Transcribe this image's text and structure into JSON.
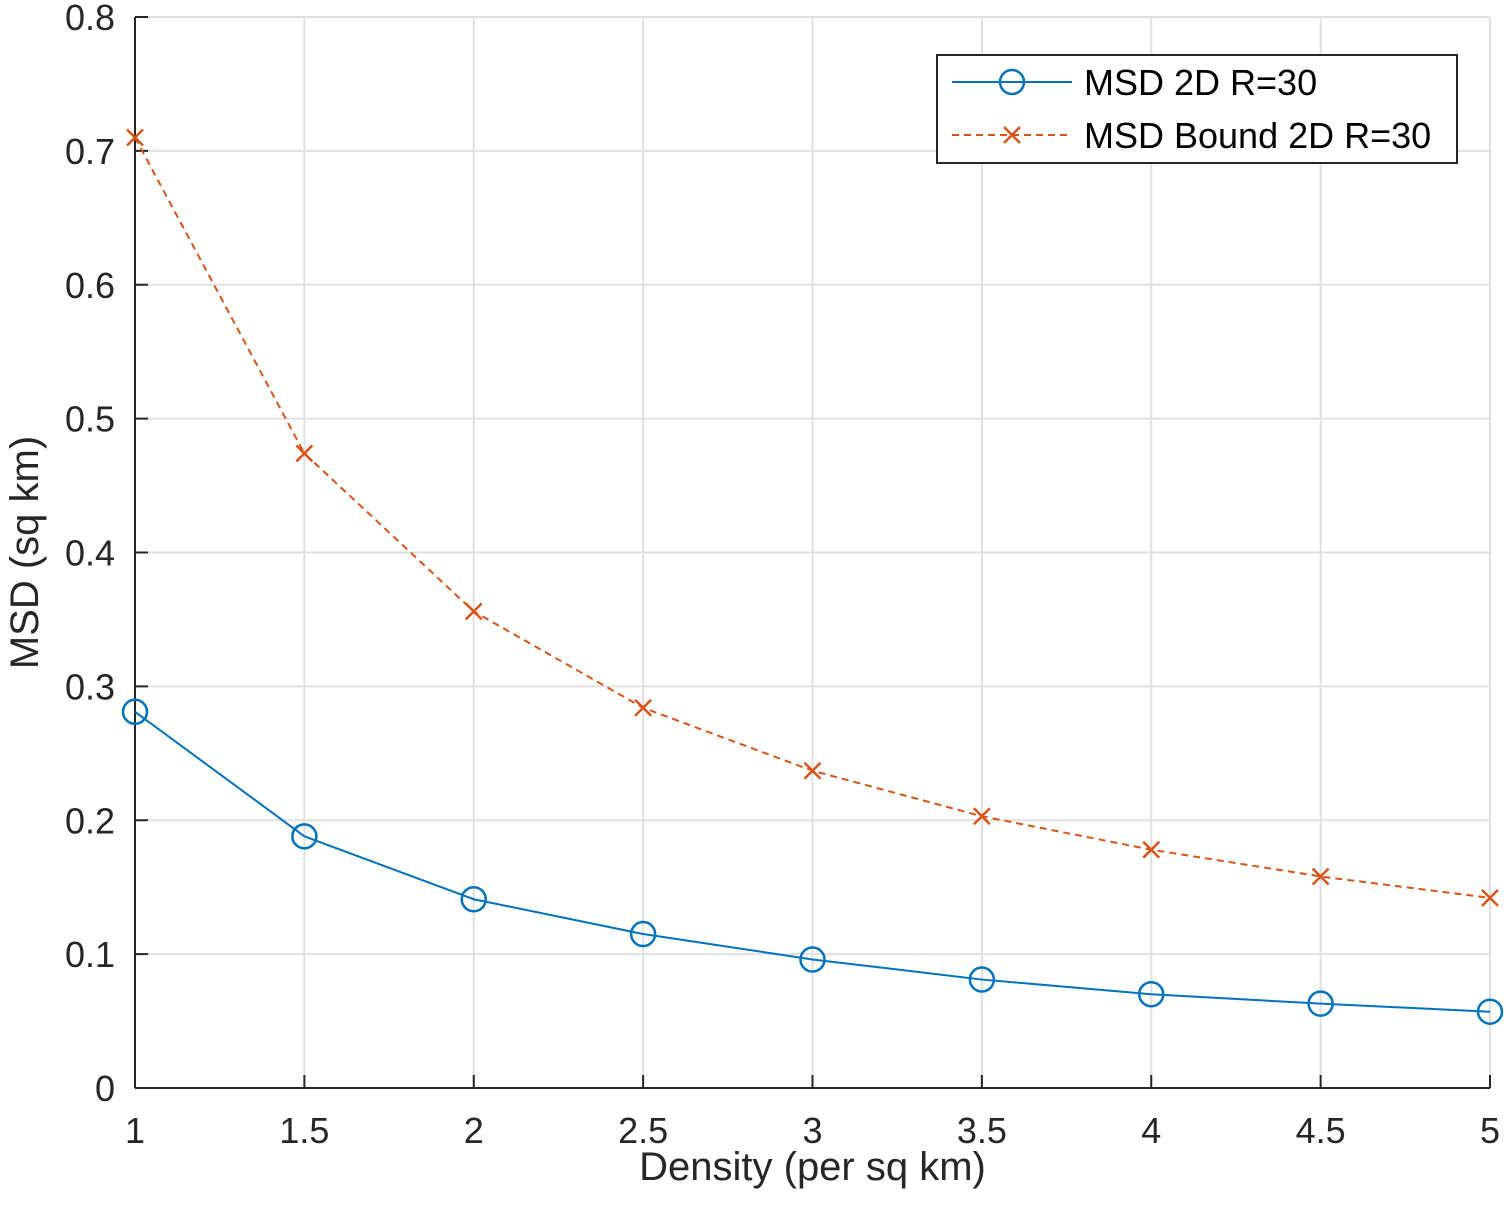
{
  "chart_data": {
    "type": "line",
    "title": "",
    "xlabel": "Density (per sq km)",
    "ylabel": "MSD (sq km)",
    "xlim": [
      1,
      5
    ],
    "ylim": [
      0,
      0.8
    ],
    "x_ticks": [
      1,
      1.5,
      2,
      2.5,
      3,
      3.5,
      4,
      4.5,
      5
    ],
    "x_tick_labels": [
      "1",
      "1.5",
      "2",
      "2.5",
      "3",
      "3.5",
      "4",
      "4.5",
      "5"
    ],
    "y_ticks": [
      0,
      0.1,
      0.2,
      0.3,
      0.4,
      0.5,
      0.6,
      0.7,
      0.8
    ],
    "y_tick_labels": [
      "0",
      "0.1",
      "0.2",
      "0.3",
      "0.4",
      "0.5",
      "0.6",
      "0.7",
      "0.8"
    ],
    "grid": true,
    "legend_position": "top-right",
    "x": [
      1,
      1.5,
      2,
      2.5,
      3,
      3.5,
      4,
      4.5,
      5
    ],
    "series": [
      {
        "name": "MSD 2D R=30",
        "color": "#0072BD",
        "marker": "circle",
        "line_style": "solid",
        "values": [
          0.281,
          0.188,
          0.141,
          0.115,
          0.096,
          0.081,
          0.07,
          0.063,
          0.057
        ]
      },
      {
        "name": "MSD Bound 2D R=30",
        "color": "#D95319",
        "marker": "x",
        "line_style": "dashed",
        "values": [
          0.71,
          0.474,
          0.356,
          0.284,
          0.237,
          0.203,
          0.178,
          0.158,
          0.142
        ]
      }
    ]
  }
}
